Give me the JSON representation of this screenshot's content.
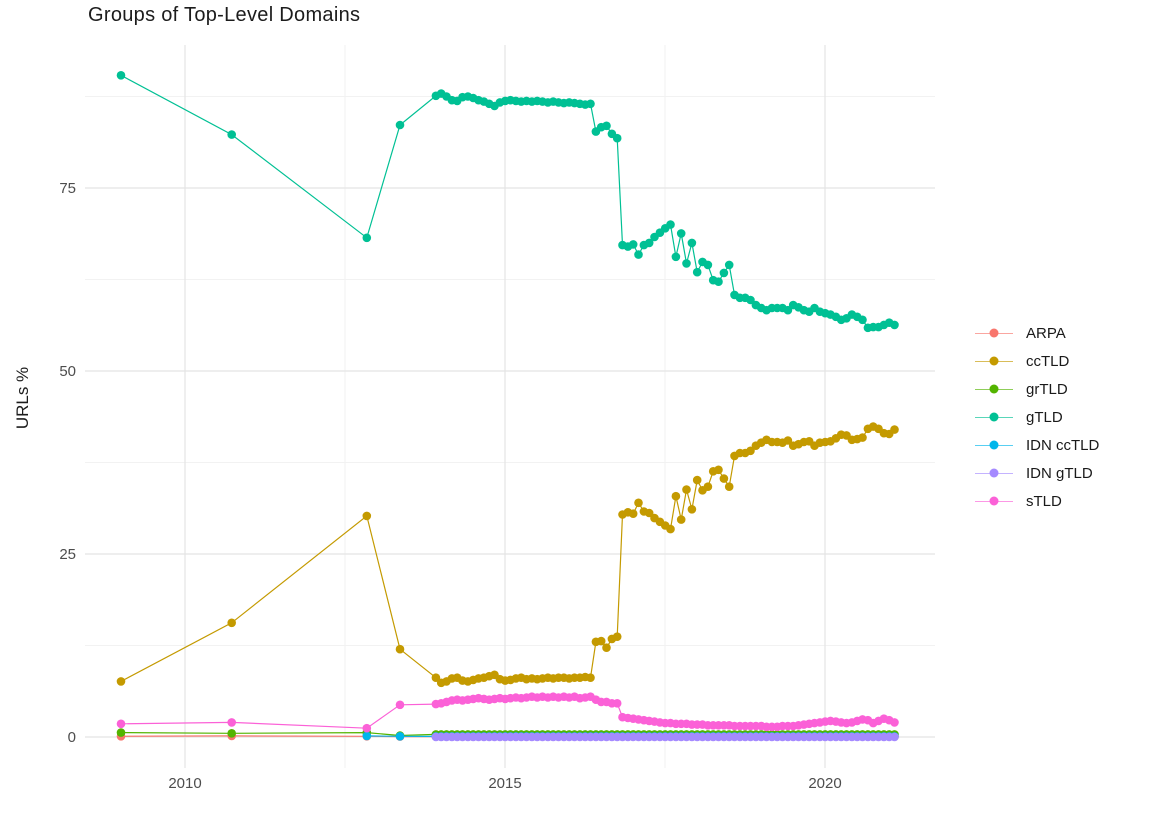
{
  "chart_data": {
    "type": "line",
    "title": "Groups of Top-Level Domains",
    "xlabel": "",
    "ylabel": "URLs %",
    "x_ticks": [
      2010,
      2015,
      2020
    ],
    "x_tick_labels": [
      "2010",
      "2015",
      "2020"
    ],
    "y_ticks": [
      0,
      25,
      50,
      75
    ],
    "y_tick_labels": [
      "0",
      "25",
      "50",
      "75"
    ],
    "x_minor_gridlines": [
      2012.5,
      2017.5
    ],
    "y_minor_gridlines": [
      12.5,
      37.5,
      62.5,
      87.5
    ],
    "xlim": [
      2008.44,
      2021.72
    ],
    "ylim": [
      -4.5,
      95
    ],
    "grid": true,
    "legend_position": "right",
    "dense_x": {
      "start": 2013.92,
      "step": 0.083333,
      "n": 87
    },
    "series": [
      {
        "name": "ARPA",
        "color": "#F8766D",
        "early": [
          [
            2009.0,
            0.1
          ],
          [
            2010.73,
            0.15
          ],
          [
            2012.84,
            0.1
          ],
          [
            2013.36,
            0.05
          ]
        ],
        "dense_const": 0.05
      },
      {
        "name": "ccTLD",
        "color": "#C49A00",
        "early": [
          [
            2009.0,
            7.6
          ],
          [
            2010.73,
            15.6
          ],
          [
            2012.84,
            30.2
          ],
          [
            2013.36,
            12.0
          ]
        ],
        "dense_values": [
          8.1,
          7.4,
          7.6,
          8.0,
          8.1,
          7.7,
          7.6,
          7.8,
          8.0,
          8.1,
          8.3,
          8.5,
          7.9,
          7.7,
          7.8,
          8.0,
          8.1,
          7.9,
          8.0,
          7.9,
          8.0,
          8.1,
          8.0,
          8.1,
          8.1,
          8.0,
          8.1,
          8.1,
          8.2,
          8.1,
          13.0,
          13.1,
          12.2,
          13.4,
          13.7,
          30.4,
          30.7,
          30.5,
          32.0,
          30.8,
          30.6,
          29.9,
          29.4,
          28.9,
          28.4,
          32.9,
          29.7,
          33.8,
          31.1,
          35.1,
          33.7,
          34.2,
          36.3,
          36.5,
          35.3,
          34.2,
          38.4,
          38.8,
          38.8,
          39.1,
          39.8,
          40.2,
          40.6,
          40.3,
          40.3,
          40.2,
          40.5,
          39.8,
          40.0,
          40.3,
          40.4,
          39.8,
          40.2,
          40.3,
          40.4,
          40.8,
          41.3,
          41.2,
          40.6,
          40.7,
          40.9,
          42.1,
          42.4,
          42.1,
          41.5,
          41.4,
          42.0
        ]
      },
      {
        "name": "grTLD",
        "color": "#53B400",
        "early": [
          [
            2009.0,
            0.6
          ],
          [
            2010.73,
            0.5
          ],
          [
            2012.84,
            0.6
          ],
          [
            2013.36,
            0.2
          ]
        ],
        "dense_const": 0.35
      },
      {
        "name": "gTLD",
        "color": "#00C094",
        "early": [
          [
            2009.0,
            90.4
          ],
          [
            2010.73,
            82.3
          ],
          [
            2012.84,
            68.2
          ],
          [
            2013.36,
            83.6
          ]
        ],
        "dense_values": [
          87.6,
          87.9,
          87.5,
          87.0,
          86.9,
          87.4,
          87.5,
          87.3,
          87.0,
          86.8,
          86.5,
          86.2,
          86.7,
          86.9,
          87.0,
          86.9,
          86.8,
          86.9,
          86.8,
          86.9,
          86.8,
          86.7,
          86.8,
          86.7,
          86.6,
          86.7,
          86.6,
          86.5,
          86.4,
          86.5,
          82.7,
          83.3,
          83.5,
          82.4,
          81.8,
          67.2,
          67.0,
          67.3,
          65.9,
          67.2,
          67.5,
          68.3,
          68.9,
          69.5,
          70.0,
          65.6,
          68.8,
          64.7,
          67.5,
          63.5,
          64.9,
          64.5,
          62.4,
          62.2,
          63.4,
          64.5,
          60.4,
          60.0,
          60.0,
          59.7,
          59.0,
          58.6,
          58.3,
          58.6,
          58.6,
          58.6,
          58.3,
          59.0,
          58.7,
          58.3,
          58.1,
          58.6,
          58.1,
          57.9,
          57.7,
          57.4,
          57.0,
          57.2,
          57.7,
          57.4,
          57.0,
          55.9,
          56.0,
          56.0,
          56.3,
          56.6,
          56.3
        ]
      },
      {
        "name": "IDN ccTLD",
        "color": "#00B6EB",
        "early": [
          [
            2012.84,
            0.15
          ],
          [
            2013.36,
            0.1
          ]
        ],
        "dense_const": 0.08
      },
      {
        "name": "IDN gTLD",
        "color": "#A58AFF",
        "early": [],
        "dense_const": 0.02
      },
      {
        "name": "sTLD",
        "color": "#FB61D7",
        "early": [
          [
            2009.0,
            1.8
          ],
          [
            2010.73,
            2.0
          ],
          [
            2012.84,
            1.2
          ],
          [
            2013.36,
            4.4
          ]
        ],
        "dense_values": [
          4.5,
          4.6,
          4.8,
          5.0,
          5.1,
          5.0,
          5.1,
          5.2,
          5.3,
          5.2,
          5.1,
          5.2,
          5.3,
          5.2,
          5.3,
          5.4,
          5.3,
          5.4,
          5.5,
          5.4,
          5.5,
          5.4,
          5.5,
          5.4,
          5.5,
          5.4,
          5.5,
          5.3,
          5.4,
          5.5,
          5.1,
          4.8,
          4.8,
          4.6,
          4.6,
          2.7,
          2.6,
          2.5,
          2.4,
          2.3,
          2.2,
          2.1,
          2.0,
          1.9,
          1.9,
          1.8,
          1.8,
          1.8,
          1.7,
          1.7,
          1.7,
          1.6,
          1.6,
          1.6,
          1.6,
          1.6,
          1.5,
          1.5,
          1.5,
          1.5,
          1.5,
          1.5,
          1.4,
          1.4,
          1.4,
          1.5,
          1.5,
          1.5,
          1.6,
          1.7,
          1.8,
          1.9,
          2.0,
          2.1,
          2.2,
          2.1,
          2.0,
          1.9,
          2.0,
          2.2,
          2.4,
          2.3,
          1.9,
          2.2,
          2.5,
          2.3,
          2.0
        ]
      }
    ],
    "legend_items": [
      "ARPA",
      "ccTLD",
      "grTLD",
      "gTLD",
      "IDN ccTLD",
      "IDN gTLD",
      "sTLD"
    ],
    "colors": {
      "ARPA": "#F8766D",
      "ccTLD": "#C49A00",
      "grTLD": "#53B400",
      "gTLD": "#00C094",
      "IDN ccTLD": "#00B6EB",
      "IDN gTLD": "#A58AFF",
      "sTLD": "#FB61D7",
      "grid_major": "#E4E4E4",
      "grid_minor": "#F2F2F2",
      "axis_text": "#4d4d4d",
      "title_text": "#1c1c1c"
    }
  }
}
